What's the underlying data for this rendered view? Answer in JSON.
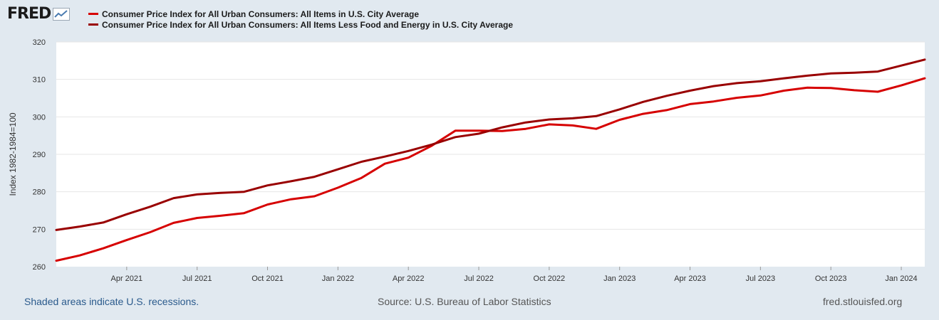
{
  "header": {
    "logo_text": "FRED",
    "logo_icon": "chart-line-icon"
  },
  "colors": {
    "background": "#e1e9f0",
    "plot_background": "#ffffff",
    "series_1": "#d60000",
    "series_2": "#990000",
    "gridline": "#e6e6e6",
    "note_link": "#2a5a8c"
  },
  "chart_data": {
    "type": "line",
    "title": "",
    "xlabel": "",
    "ylabel": "Index 1982-1984=100",
    "ylim": [
      260,
      320
    ],
    "yticks": [
      260,
      270,
      280,
      290,
      300,
      310,
      320
    ],
    "x": [
      "2021-01",
      "2021-02",
      "2021-03",
      "2021-04",
      "2021-05",
      "2021-06",
      "2021-07",
      "2021-08",
      "2021-09",
      "2021-10",
      "2021-11",
      "2021-12",
      "2022-01",
      "2022-02",
      "2022-03",
      "2022-04",
      "2022-05",
      "2022-06",
      "2022-07",
      "2022-08",
      "2022-09",
      "2022-10",
      "2022-11",
      "2022-12",
      "2023-01",
      "2023-02",
      "2023-03",
      "2023-04",
      "2023-05",
      "2023-06",
      "2023-07",
      "2023-08",
      "2023-09",
      "2023-10",
      "2023-11",
      "2023-12",
      "2024-01",
      "2024-02"
    ],
    "xtick_labels": [
      {
        "x": "2021-04",
        "label": "Apr 2021"
      },
      {
        "x": "2021-07",
        "label": "Jul 2021"
      },
      {
        "x": "2021-10",
        "label": "Oct 2021"
      },
      {
        "x": "2022-01",
        "label": "Jan 2022"
      },
      {
        "x": "2022-04",
        "label": "Apr 2022"
      },
      {
        "x": "2022-07",
        "label": "Jul 2022"
      },
      {
        "x": "2022-10",
        "label": "Oct 2022"
      },
      {
        "x": "2023-01",
        "label": "Jan 2023"
      },
      {
        "x": "2023-04",
        "label": "Apr 2023"
      },
      {
        "x": "2023-07",
        "label": "Jul 2023"
      },
      {
        "x": "2023-10",
        "label": "Oct 2023"
      },
      {
        "x": "2024-01",
        "label": "Jan 2024"
      }
    ],
    "series": [
      {
        "name": "Consumer Price Index for All Urban Consumers: All Items in U.S. City Average",
        "color": "#d60000",
        "values": [
          261.6,
          263.0,
          264.9,
          267.1,
          269.2,
          271.7,
          273.0,
          273.6,
          274.3,
          276.6,
          278.0,
          278.8,
          281.1,
          283.7,
          287.5,
          289.1,
          292.3,
          296.3,
          296.3,
          296.2,
          296.8,
          298.0,
          297.7,
          296.8,
          299.2,
          300.8,
          301.8,
          303.4,
          304.1,
          305.1,
          305.7,
          307.0,
          307.8,
          307.7,
          307.1,
          306.7,
          308.4,
          310.3
        ]
      },
      {
        "name": "Consumer Price Index for All Urban Consumers: All Items Less Food and Energy in U.S. City Average",
        "color": "#990000",
        "values": [
          269.8,
          270.7,
          271.8,
          274.0,
          276.0,
          278.3,
          279.3,
          279.7,
          280.0,
          281.7,
          282.8,
          284.0,
          286.0,
          288.0,
          289.4,
          290.9,
          292.6,
          294.6,
          295.5,
          297.2,
          298.5,
          299.3,
          299.6,
          300.2,
          302.0,
          304.0,
          305.6,
          307.0,
          308.2,
          309.0,
          309.5,
          310.3,
          311.0,
          311.6,
          311.8,
          312.1,
          313.7,
          315.3
        ]
      }
    ]
  },
  "footer": {
    "recession_note": "Shaded areas indicate U.S. recessions.",
    "source": "Source: U.S. Bureau of Labor Statistics",
    "site": "fred.stlouisfed.org"
  }
}
